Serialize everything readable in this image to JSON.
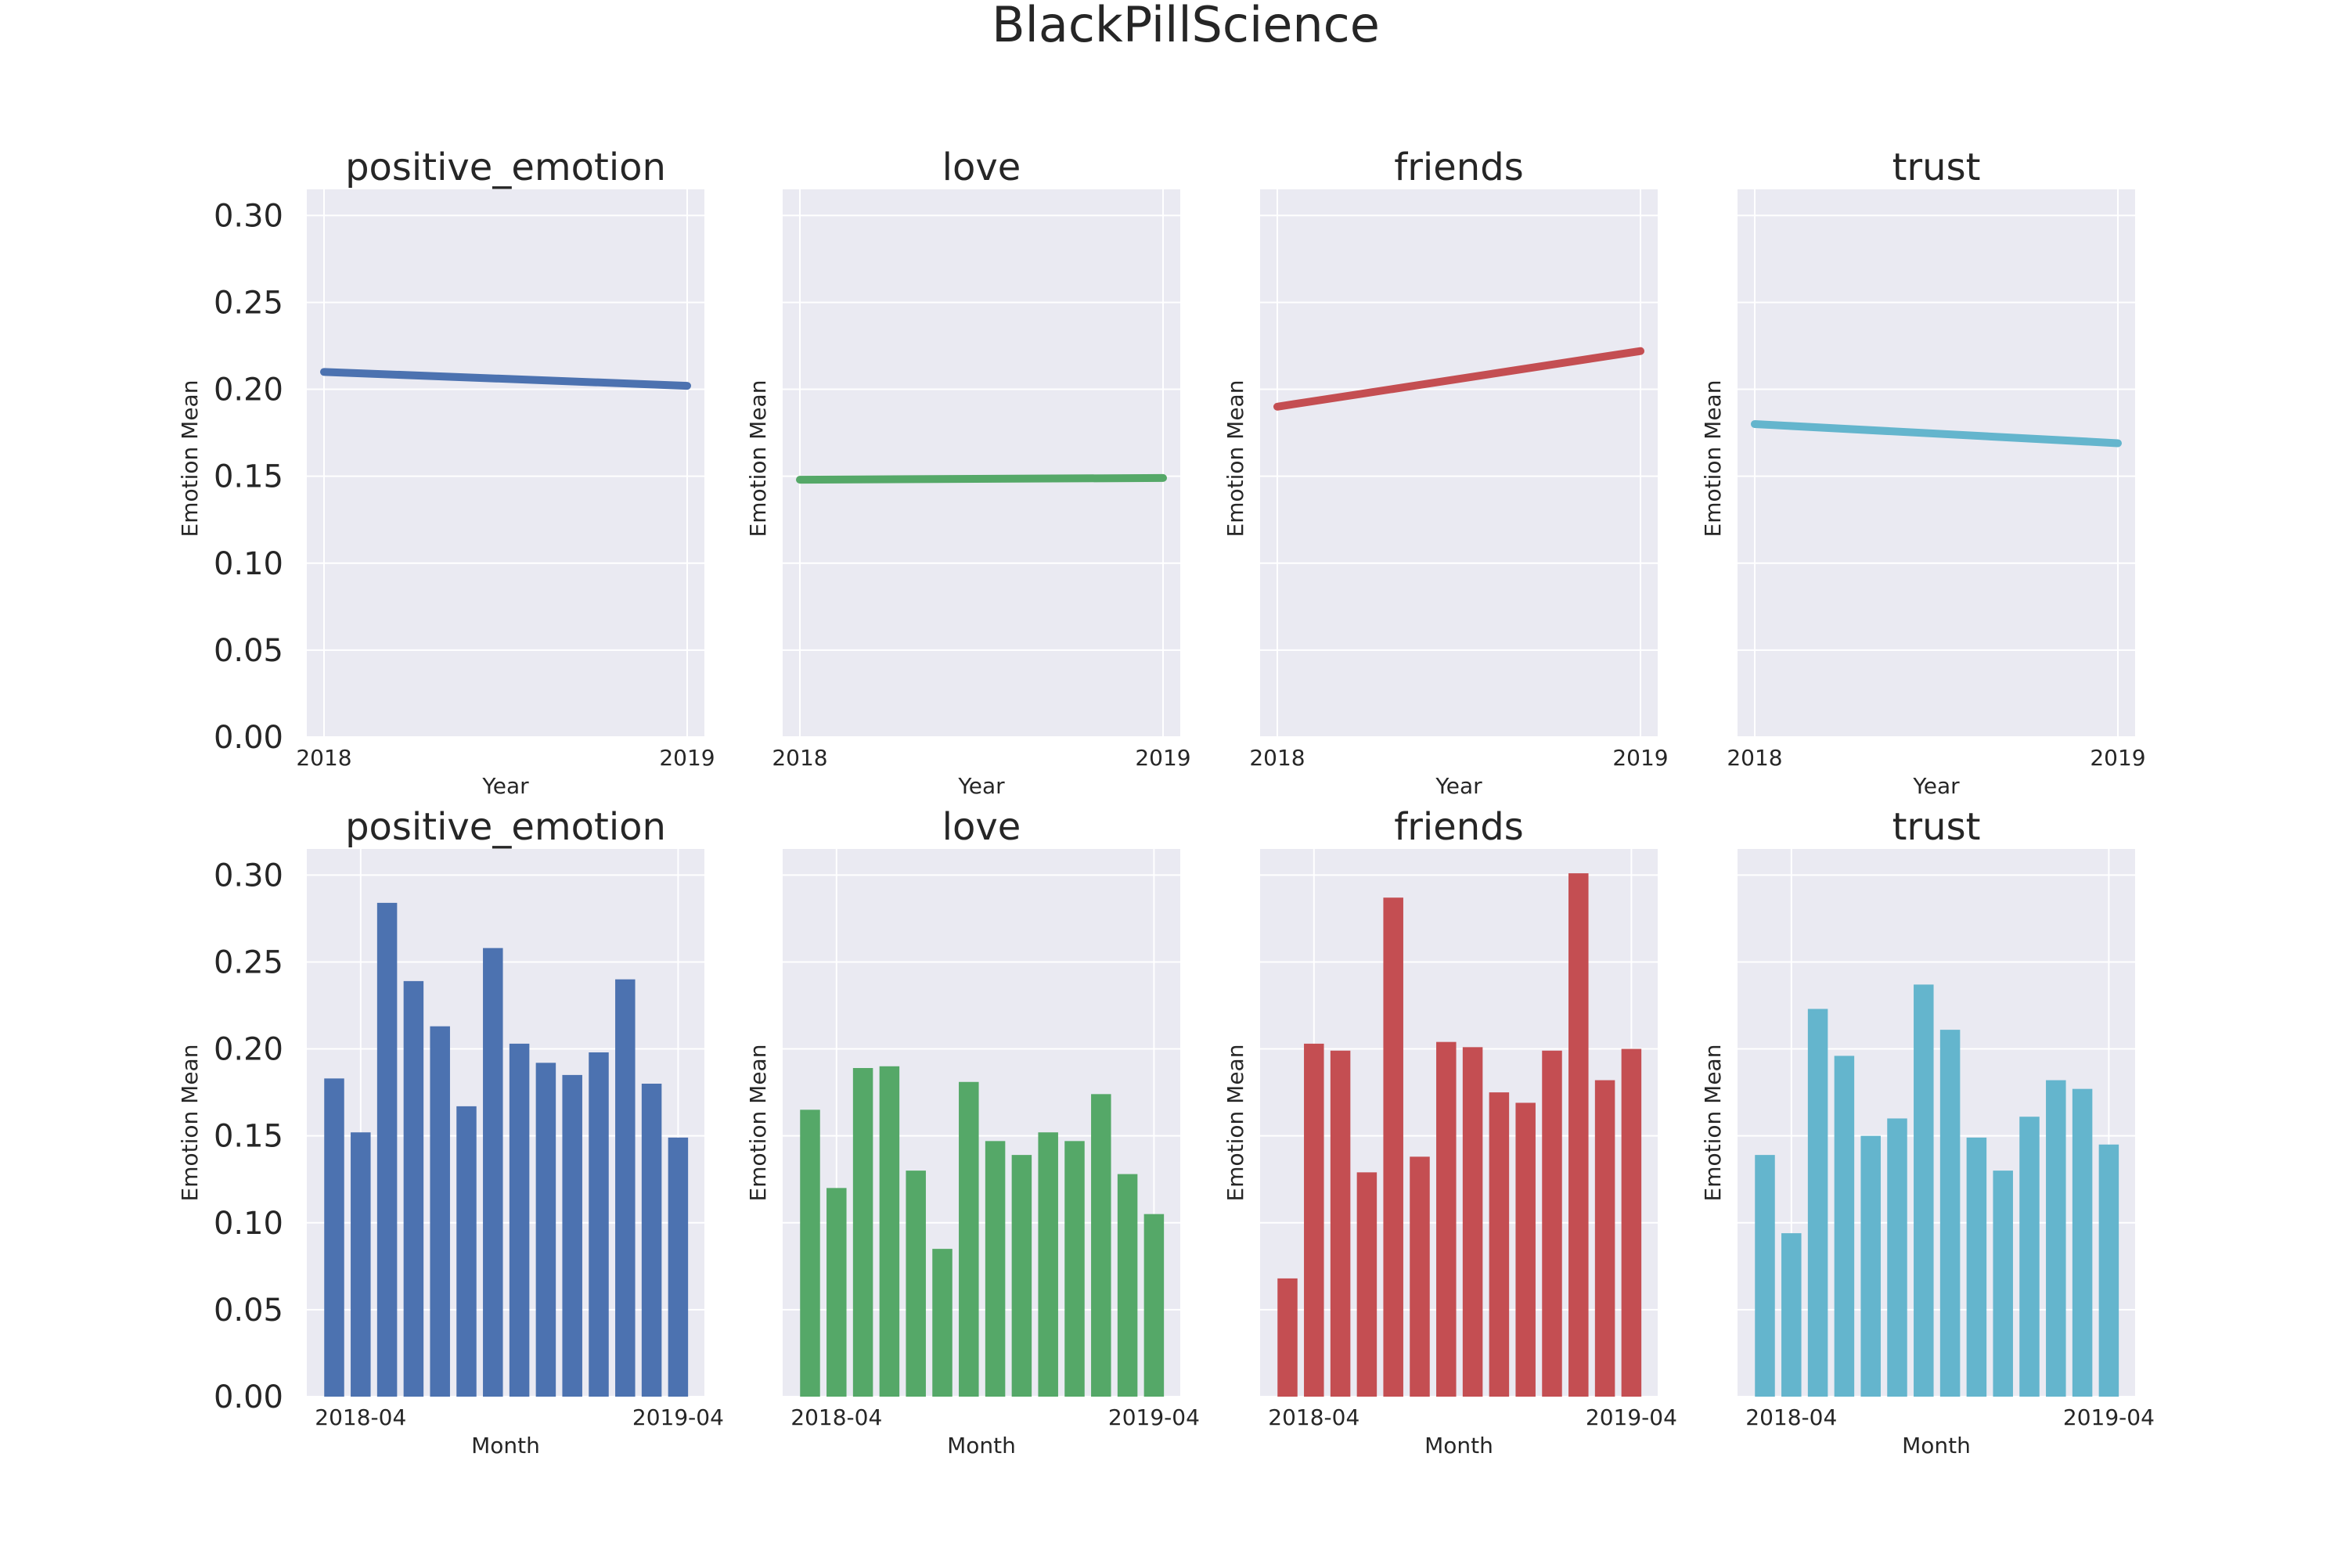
{
  "figure": {
    "suptitle": "BlackPillScience"
  },
  "colors": {
    "axes_background": "#EAEAF2",
    "grid": "#FFFFFF",
    "positive_emotion": "#4C72B0",
    "love": "#55A868",
    "friends": "#C44E52",
    "trust": "#64B5CD"
  },
  "chart_data": [
    {
      "type": "line",
      "title": "positive_emotion",
      "xlabel": "Year",
      "ylabel": "Emotion Mean",
      "x": [
        "2018",
        "2019"
      ],
      "values": [
        0.21,
        0.202
      ],
      "ylim": [
        0,
        0.315
      ],
      "yticks": [
        "0.00",
        "0.05",
        "0.10",
        "0.15",
        "0.20",
        "0.25",
        "0.30"
      ],
      "show_yticks": true,
      "color": "#4C72B0",
      "grid": true
    },
    {
      "type": "line",
      "title": "love",
      "xlabel": "Year",
      "ylabel": "Emotion Mean",
      "x": [
        "2018",
        "2019"
      ],
      "values": [
        0.148,
        0.149
      ],
      "ylim": [
        0,
        0.315
      ],
      "show_yticks": false,
      "color": "#55A868",
      "grid": true
    },
    {
      "type": "line",
      "title": "friends",
      "xlabel": "Year",
      "ylabel": "Emotion Mean",
      "x": [
        "2018",
        "2019"
      ],
      "values": [
        0.19,
        0.222
      ],
      "ylim": [
        0,
        0.315
      ],
      "show_yticks": false,
      "color": "#C44E52",
      "grid": true
    },
    {
      "type": "line",
      "title": "trust",
      "xlabel": "Year",
      "ylabel": "Emotion Mean",
      "x": [
        "2018",
        "2019"
      ],
      "values": [
        0.18,
        0.169
      ],
      "ylim": [
        0,
        0.315
      ],
      "show_yticks": false,
      "color": "#64B5CD",
      "grid": true
    },
    {
      "type": "bar",
      "title": "positive_emotion",
      "xlabel": "Month",
      "ylabel": "Emotion Mean",
      "x_tick_labels": [
        "2018-04",
        "2019-04"
      ],
      "values": [
        0.183,
        0.152,
        0.284,
        0.239,
        0.213,
        0.167,
        0.258,
        0.203,
        0.192,
        0.185,
        0.198,
        0.24,
        0.18,
        0.149
      ],
      "ylim": [
        0,
        0.315
      ],
      "yticks": [
        "0.00",
        "0.05",
        "0.10",
        "0.15",
        "0.20",
        "0.25",
        "0.30"
      ],
      "show_yticks": true,
      "color": "#4C72B0",
      "grid": true
    },
    {
      "type": "bar",
      "title": "love",
      "xlabel": "Month",
      "ylabel": "Emotion Mean",
      "x_tick_labels": [
        "2018-04",
        "2019-04"
      ],
      "values": [
        0.165,
        0.12,
        0.189,
        0.19,
        0.13,
        0.085,
        0.181,
        0.147,
        0.139,
        0.152,
        0.147,
        0.174,
        0.128,
        0.105
      ],
      "ylim": [
        0,
        0.315
      ],
      "show_yticks": false,
      "color": "#55A868",
      "grid": true
    },
    {
      "type": "bar",
      "title": "friends",
      "xlabel": "Month",
      "ylabel": "Emotion Mean",
      "x_tick_labels": [
        "2018-04",
        "2019-04"
      ],
      "values": [
        0.068,
        0.203,
        0.199,
        0.129,
        0.287,
        0.138,
        0.204,
        0.201,
        0.175,
        0.169,
        0.199,
        0.301,
        0.182,
        0.2
      ],
      "ylim": [
        0,
        0.315
      ],
      "show_yticks": false,
      "color": "#C44E52",
      "grid": true
    },
    {
      "type": "bar",
      "title": "trust",
      "xlabel": "Month",
      "ylabel": "Emotion Mean",
      "x_tick_labels": [
        "2018-04",
        "2019-04"
      ],
      "values": [
        0.139,
        0.094,
        0.223,
        0.196,
        0.15,
        0.16,
        0.237,
        0.211,
        0.149,
        0.13,
        0.161,
        0.182,
        0.177,
        0.145
      ],
      "ylim": [
        0,
        0.315
      ],
      "show_yticks": false,
      "color": "#64B5CD",
      "grid": true
    }
  ]
}
